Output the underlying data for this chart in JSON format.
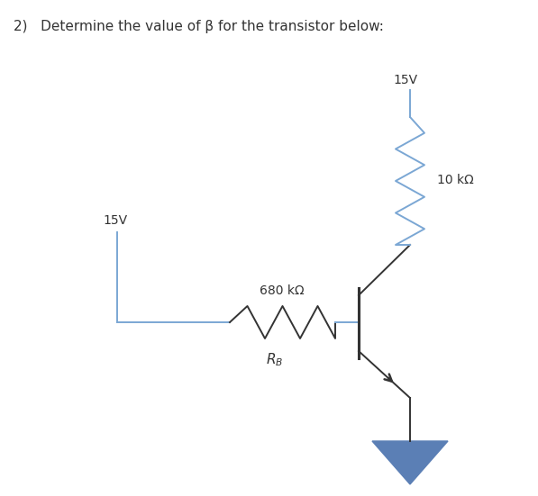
{
  "title": "2)   Determine the value of β for the transistor below:",
  "title_fontsize": 11,
  "bg_color": "#ffffff",
  "line_color_blue": "#7ba7d4",
  "line_color_black": "#333333",
  "label_15V_left": "15V",
  "label_15V_right": "15V",
  "label_10k": "10 kΩ",
  "label_680k": "680 kΩ",
  "label_RB": "$R_B$",
  "ground_color": "#5b7fb5",
  "lw_blue": 1.4,
  "lw_black": 1.4
}
